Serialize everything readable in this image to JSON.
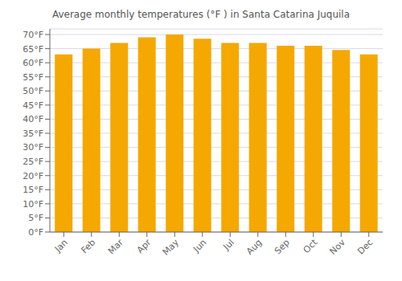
{
  "chart_data": {
    "type": "bar",
    "title": "Average monthly temperatures (°F ) in Santa Catarina Juquila",
    "categories": [
      "Jan",
      "Feb",
      "Mar",
      "Apr",
      "May",
      "Jun",
      "Jul",
      "Aug",
      "Sep",
      "Oct",
      "Nov",
      "Dec"
    ],
    "values": [
      63,
      65,
      67,
      69,
      70,
      68.5,
      67,
      67,
      66,
      66,
      64.5,
      63
    ],
    "color": "#F5A800",
    "ylim": [
      0,
      72
    ],
    "yticks": [
      {
        "value": 0,
        "label": "0°F"
      },
      {
        "value": 5,
        "label": "5°F"
      },
      {
        "value": 10,
        "label": "10°F"
      },
      {
        "value": 15,
        "label": "15°F"
      },
      {
        "value": 20,
        "label": "20°F"
      },
      {
        "value": 25,
        "label": "25°F"
      },
      {
        "value": 30,
        "label": "30°F"
      },
      {
        "value": 35,
        "label": "35°F"
      },
      {
        "value": 40,
        "label": "40°F"
      },
      {
        "value": 45,
        "label": "45°F"
      },
      {
        "value": 50,
        "label": "50°F"
      },
      {
        "value": 55,
        "label": "55°F"
      },
      {
        "value": 60,
        "label": "60°F"
      },
      {
        "value": 65,
        "label": "65°F"
      },
      {
        "value": 70,
        "label": "70°F"
      }
    ],
    "grid": true
  }
}
